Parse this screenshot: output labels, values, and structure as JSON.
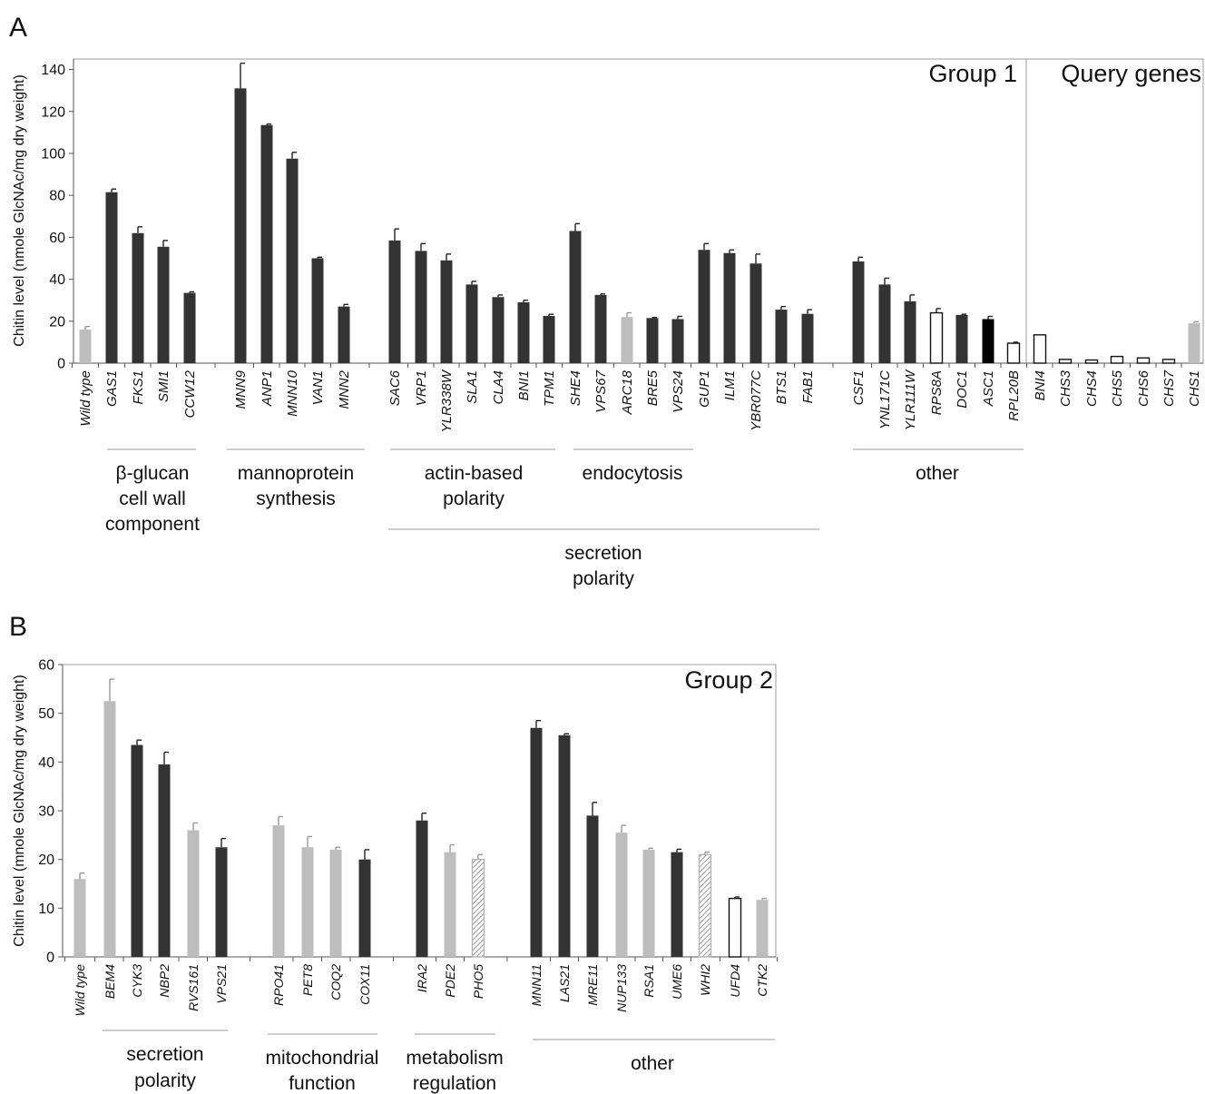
{
  "chart_data": [
    {
      "panel": "A",
      "type": "bar",
      "ylabel": "Chitin level (nmole GlcNAc/mg dry weight)",
      "ylim": [
        0,
        145
      ],
      "yticks": [
        0,
        20,
        40,
        60,
        80,
        100,
        120,
        140
      ],
      "annotations": [
        "Group 1",
        "Query genes"
      ],
      "bars": [
        {
          "gene": "Wild type",
          "value": 16,
          "error": 1.5,
          "color": "#bdbdbd"
        },
        {
          "gene": "GAS1",
          "value": 81.5,
          "error": 1.5,
          "color": "#333333"
        },
        {
          "gene": "FKS1",
          "value": 62,
          "error": 3,
          "color": "#333333"
        },
        {
          "gene": "SMI1",
          "value": 55.5,
          "error": 3,
          "color": "#333333"
        },
        {
          "gene": "CCW12",
          "value": 33.5,
          "error": 0.5,
          "color": "#333333"
        },
        {
          "gene": "MNN9",
          "value": 131,
          "error": 12,
          "color": "#333333"
        },
        {
          "gene": "ANP1",
          "value": 113.5,
          "error": 0.5,
          "color": "#333333"
        },
        {
          "gene": "MNN10",
          "value": 97.5,
          "error": 3,
          "color": "#333333"
        },
        {
          "gene": "VAN1",
          "value": 50,
          "error": 0.5,
          "color": "#333333"
        },
        {
          "gene": "MNN2",
          "value": 27,
          "error": 1,
          "color": "#333333"
        },
        {
          "gene": "SAC6",
          "value": 58.5,
          "error": 5.5,
          "color": "#333333"
        },
        {
          "gene": "VRP1",
          "value": 53.5,
          "error": 3.5,
          "color": "#333333"
        },
        {
          "gene": "YLR338W",
          "value": 49,
          "error": 3,
          "color": "#333333"
        },
        {
          "gene": "SLA1",
          "value": 37.5,
          "error": 1.5,
          "color": "#333333"
        },
        {
          "gene": "CLA4",
          "value": 31.5,
          "error": 1,
          "color": "#333333"
        },
        {
          "gene": "BNI1",
          "value": 29,
          "error": 1,
          "color": "#333333"
        },
        {
          "gene": "TPM1",
          "value": 22.5,
          "error": 0.8,
          "color": "#333333"
        },
        {
          "gene": "SHE4",
          "value": 63,
          "error": 3.5,
          "color": "#333333"
        },
        {
          "gene": "VPS67",
          "value": 32.5,
          "error": 0.5,
          "color": "#333333"
        },
        {
          "gene": "ARC18",
          "value": 22,
          "error": 2,
          "color": "#bdbdbd"
        },
        {
          "gene": "BRE5",
          "value": 21.5,
          "error": 0.3,
          "color": "#333333"
        },
        {
          "gene": "VPS24",
          "value": 21,
          "error": 1.3,
          "color": "#333333"
        },
        {
          "gene": "GUP1",
          "value": 54,
          "error": 3,
          "color": "#333333"
        },
        {
          "gene": "ILM1",
          "value": 52.5,
          "error": 1.5,
          "color": "#333333"
        },
        {
          "gene": "YBR077C",
          "value": 47.5,
          "error": 4.5,
          "color": "#333333"
        },
        {
          "gene": "BTS1",
          "value": 25.5,
          "error": 1.5,
          "color": "#333333"
        },
        {
          "gene": "FAB1",
          "value": 23.5,
          "error": 2,
          "color": "#333333"
        },
        {
          "gene": "CSF1",
          "value": 48.5,
          "error": 2,
          "color": "#333333"
        },
        {
          "gene": "YNL171C",
          "value": 37.5,
          "error": 3,
          "color": "#333333"
        },
        {
          "gene": "YLR111W",
          "value": 29.5,
          "error": 3,
          "color": "#333333"
        },
        {
          "gene": "RPS8A",
          "value": 24,
          "error": 2,
          "color": "#ffffff"
        },
        {
          "gene": "DOC1",
          "value": 23,
          "error": 0.3,
          "color": "#333333"
        },
        {
          "gene": "ASC1",
          "value": 21,
          "error": 1.3,
          "color": "#000000"
        },
        {
          "gene": "RPL20B",
          "value": 9.5,
          "error": 0.5,
          "color": "#ffffff"
        },
        {
          "gene": "BNI4",
          "value": 13.5,
          "error": 0,
          "color": "#ffffff"
        },
        {
          "gene": "CHS3",
          "value": 1.8,
          "error": 0,
          "color": "#ffffff"
        },
        {
          "gene": "CHS4",
          "value": 1.5,
          "error": 0,
          "color": "#ffffff"
        },
        {
          "gene": "CHS5",
          "value": 3.2,
          "error": 0,
          "color": "#ffffff"
        },
        {
          "gene": "CHS6",
          "value": 2.5,
          "error": 0,
          "color": "#ffffff"
        },
        {
          "gene": "CHS7",
          "value": 1.8,
          "error": 0,
          "color": "#ffffff"
        },
        {
          "gene": "CHS1",
          "value": 19,
          "error": 0.8,
          "color": "#bdbdbd"
        }
      ],
      "groups": [
        {
          "label": [
            "β-glucan",
            "cell wall",
            "component"
          ]
        },
        {
          "label": [
            "mannoprotein",
            "synthesis"
          ]
        },
        {
          "label": [
            "actin-based",
            "polarity"
          ]
        },
        {
          "label": [
            "endocytosis"
          ]
        },
        {
          "label": [
            "other"
          ]
        },
        {
          "label": [
            "secretion",
            "polarity"
          ]
        }
      ]
    },
    {
      "panel": "B",
      "type": "bar",
      "ylabel": "Chitin level (mnole GlcNAc/mg dry weight)",
      "ylim": [
        0,
        60
      ],
      "yticks": [
        0,
        10,
        20,
        30,
        40,
        50,
        60
      ],
      "annotations": [
        "Group 2"
      ],
      "bars": [
        {
          "gene": "Wild type",
          "value": 16,
          "error": 1.2,
          "color": "#bdbdbd"
        },
        {
          "gene": "BEM4",
          "value": 52.5,
          "error": 4.5,
          "color": "#bdbdbd"
        },
        {
          "gene": "CYK3",
          "value": 43.5,
          "error": 1,
          "color": "#333333"
        },
        {
          "gene": "NBP2",
          "value": 39.5,
          "error": 2.5,
          "color": "#333333"
        },
        {
          "gene": "RVS161",
          "value": 26,
          "error": 1.5,
          "color": "#bdbdbd"
        },
        {
          "gene": "VPS21",
          "value": 22.5,
          "error": 1.8,
          "color": "#333333"
        },
        {
          "gene": "RPO41",
          "value": 27,
          "error": 1.8,
          "color": "#bdbdbd"
        },
        {
          "gene": "PET8",
          "value": 22.5,
          "error": 2.2,
          "color": "#bdbdbd"
        },
        {
          "gene": "COQ2",
          "value": 22,
          "error": 0.5,
          "color": "#bdbdbd"
        },
        {
          "gene": "COX11",
          "value": 20,
          "error": 2,
          "color": "#333333"
        },
        {
          "gene": "IRA2",
          "value": 28,
          "error": 1.5,
          "color": "#333333"
        },
        {
          "gene": "PDE2",
          "value": 21.5,
          "error": 1.5,
          "color": "#bdbdbd"
        },
        {
          "gene": "PHO5",
          "value": 20,
          "error": 1,
          "color": "hatch"
        },
        {
          "gene": "MNN11",
          "value": 47,
          "error": 1.5,
          "color": "#333333"
        },
        {
          "gene": "LAS21",
          "value": 45.5,
          "error": 0.3,
          "color": "#333333"
        },
        {
          "gene": "MRE11",
          "value": 29,
          "error": 2.7,
          "color": "#333333"
        },
        {
          "gene": "NUP133",
          "value": 25.5,
          "error": 1.5,
          "color": "#bdbdbd"
        },
        {
          "gene": "RSA1",
          "value": 22,
          "error": 0.3,
          "color": "#bdbdbd"
        },
        {
          "gene": "UME6",
          "value": 21.5,
          "error": 0.6,
          "color": "#333333"
        },
        {
          "gene": "WHI2",
          "value": 21,
          "error": 0.5,
          "color": "hatch"
        },
        {
          "gene": "UFD4",
          "value": 12,
          "error": 0.3,
          "color": "#ffffff"
        },
        {
          "gene": "CTK2",
          "value": 11.7,
          "error": 0.3,
          "color": "#bdbdbd"
        }
      ],
      "groups": [
        {
          "label": [
            "secretion",
            "polarity"
          ]
        },
        {
          "label": [
            "mitochondrial",
            "function"
          ]
        },
        {
          "label": [
            "metabolism",
            "regulation"
          ]
        },
        {
          "label": [
            "other"
          ]
        }
      ]
    }
  ],
  "panel_letters": [
    "A",
    "B"
  ]
}
